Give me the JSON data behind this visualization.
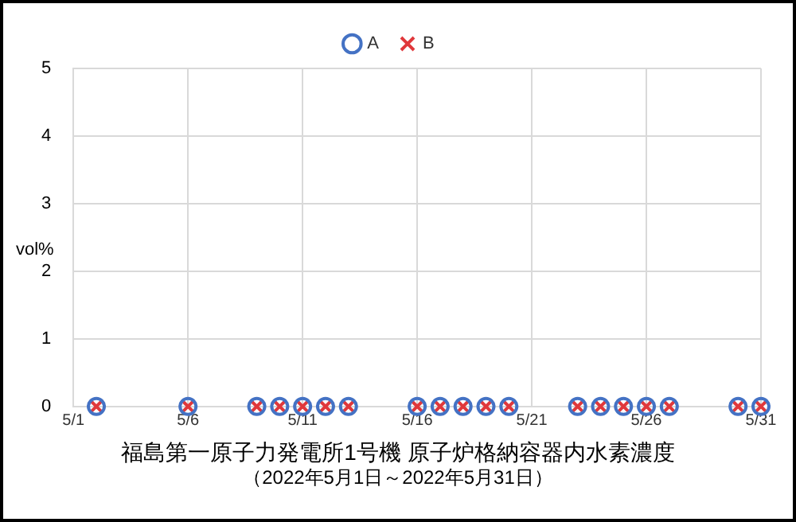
{
  "chart_data": {
    "type": "scatter",
    "title": "福島第一原子力発電所1号機 原子炉格納容器内水素濃度",
    "subtitle": "（2022年5月1日～2022年5月31日）",
    "ylabel": "vol%",
    "x": [
      "2022-05-02",
      "2022-05-06",
      "2022-05-09",
      "2022-05-10",
      "2022-05-11",
      "2022-05-12",
      "2022-05-13",
      "2022-05-16",
      "2022-05-17",
      "2022-05-18",
      "2022-05-19",
      "2022-05-20",
      "2022-05-23",
      "2022-05-24",
      "2022-05-25",
      "2022-05-26",
      "2022-05-27",
      "2022-05-30",
      "2022-05-31"
    ],
    "series": [
      {
        "name": "A",
        "color": "#4472c4",
        "marker": "circle",
        "values": [
          0,
          0,
          0,
          0,
          0,
          0,
          0,
          0,
          0,
          0,
          0,
          0,
          0,
          0,
          0,
          0,
          0,
          0,
          0
        ]
      },
      {
        "name": "B",
        "color": "#e0383b",
        "marker": "cross",
        "values": [
          0,
          0,
          0,
          0,
          0,
          0,
          0,
          0,
          0,
          0,
          0,
          0,
          0,
          0,
          0,
          0,
          0,
          0,
          0
        ]
      }
    ],
    "xlim": [
      "2022-05-01",
      "2022-05-31"
    ],
    "xticks": [
      {
        "value": "2022-05-01",
        "label": "5/1"
      },
      {
        "value": "2022-05-06",
        "label": "5/6"
      },
      {
        "value": "2022-05-11",
        "label": "5/11"
      },
      {
        "value": "2022-05-16",
        "label": "5/16"
      },
      {
        "value": "2022-05-21",
        "label": "5/21"
      },
      {
        "value": "2022-05-26",
        "label": "5/26"
      },
      {
        "value": "2022-05-31",
        "label": "5/31"
      }
    ],
    "ylim": [
      0,
      5
    ],
    "yticks": [
      0,
      1,
      2,
      3,
      4,
      5
    ],
    "grid": true,
    "legend": "top"
  }
}
